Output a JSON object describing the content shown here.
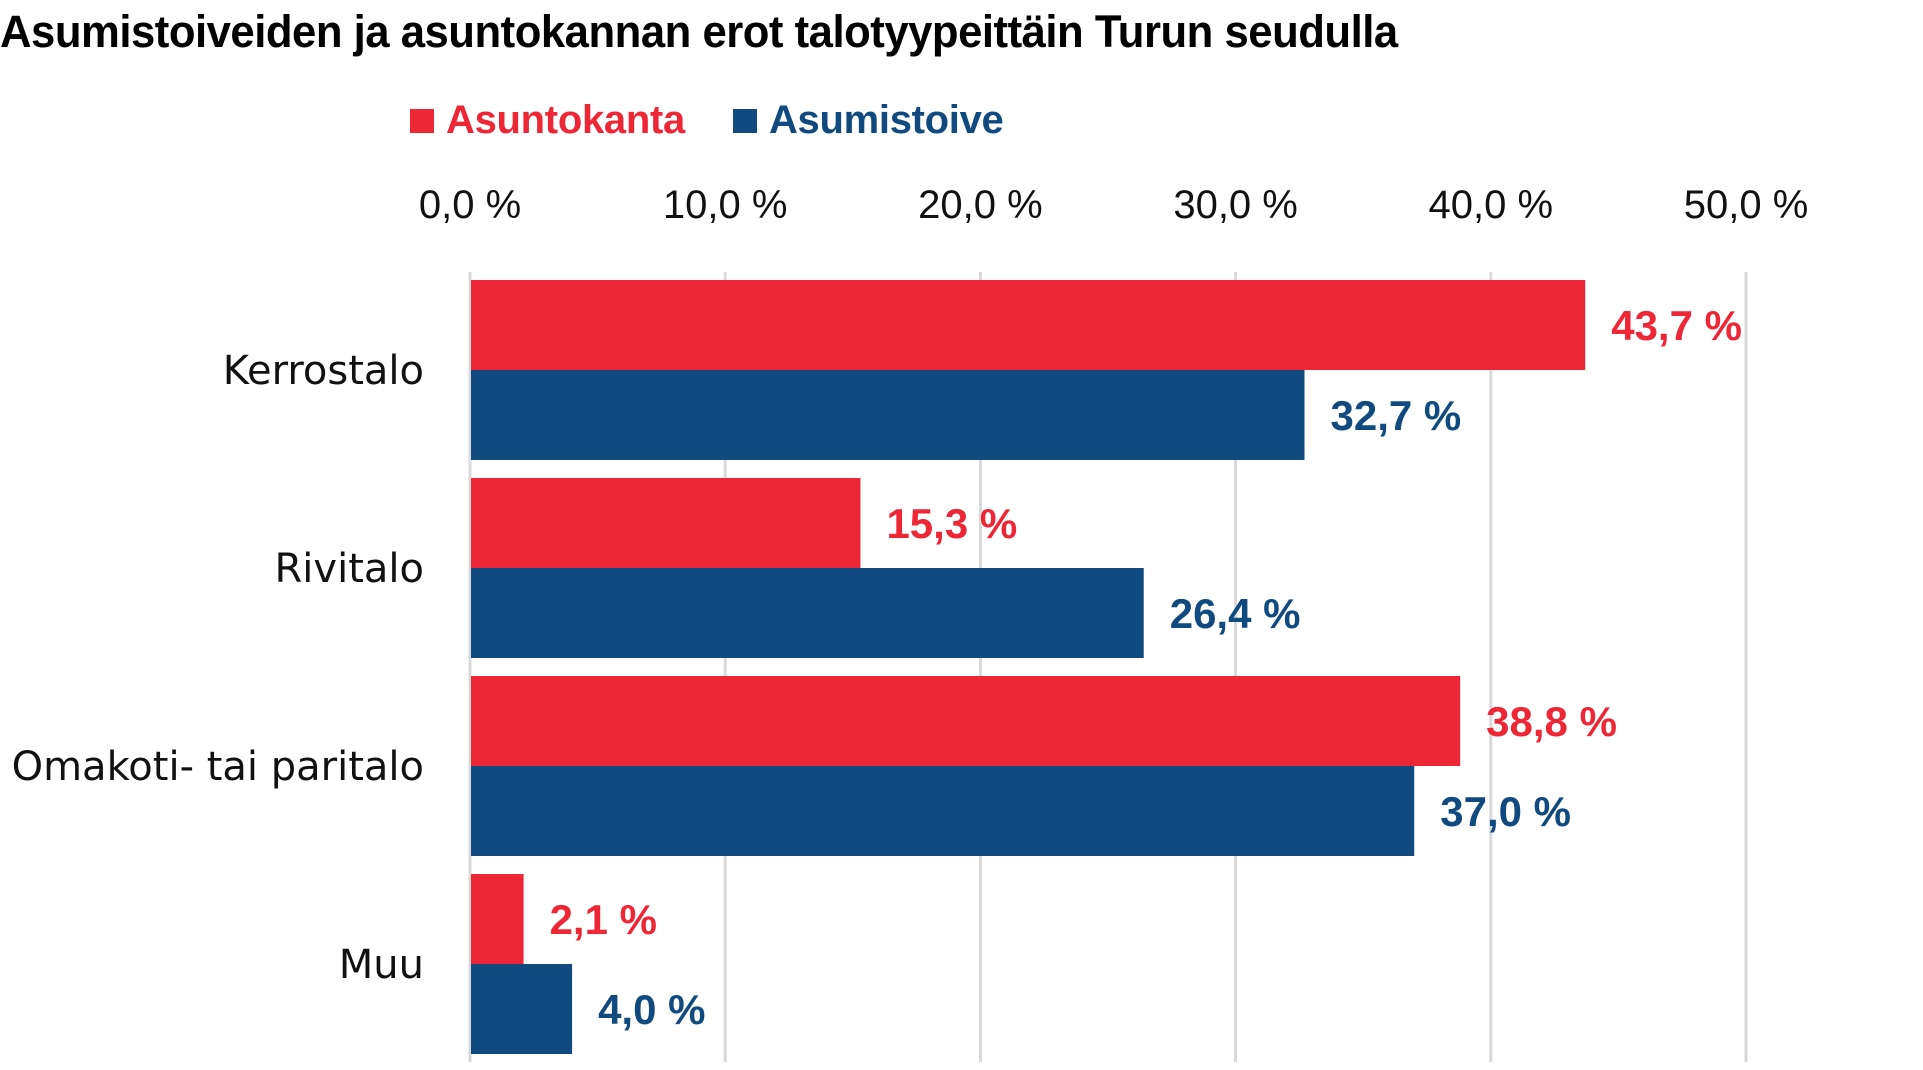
{
  "chart_data": {
    "type": "bar",
    "orientation": "horizontal",
    "title": "Asumistoiveiden ja asuntokannan erot talotyypeittäin Turun seudulla",
    "xlabel": "",
    "ylabel": "",
    "xlim": [
      0,
      50
    ],
    "x_ticks": [
      0,
      10,
      20,
      30,
      40,
      50
    ],
    "x_tick_labels": [
      "0,0 %",
      "10,0 %",
      "20,0 %",
      "30,0 %",
      "40,0 %",
      "50,0 %"
    ],
    "x_axis_position": "top",
    "grid": true,
    "legend_position": "top",
    "categories": [
      "Kerrostalo",
      "Rivitalo",
      "Omakoti- tai paritalo",
      "Muu"
    ],
    "series": [
      {
        "name": "Asuntokanta",
        "color": "#ee2737",
        "values": [
          43.7,
          15.3,
          38.8,
          2.1
        ],
        "labels": [
          "43,7 %",
          "15,3 %",
          "38,8 %",
          "2,1 %"
        ]
      },
      {
        "name": "Asumistoive",
        "color": "#114a7e",
        "values": [
          32.7,
          26.4,
          37.0,
          4.0
        ],
        "labels": [
          "32,7 %",
          "26,4 %",
          "37,0 %",
          "4,0 %"
        ]
      }
    ]
  }
}
